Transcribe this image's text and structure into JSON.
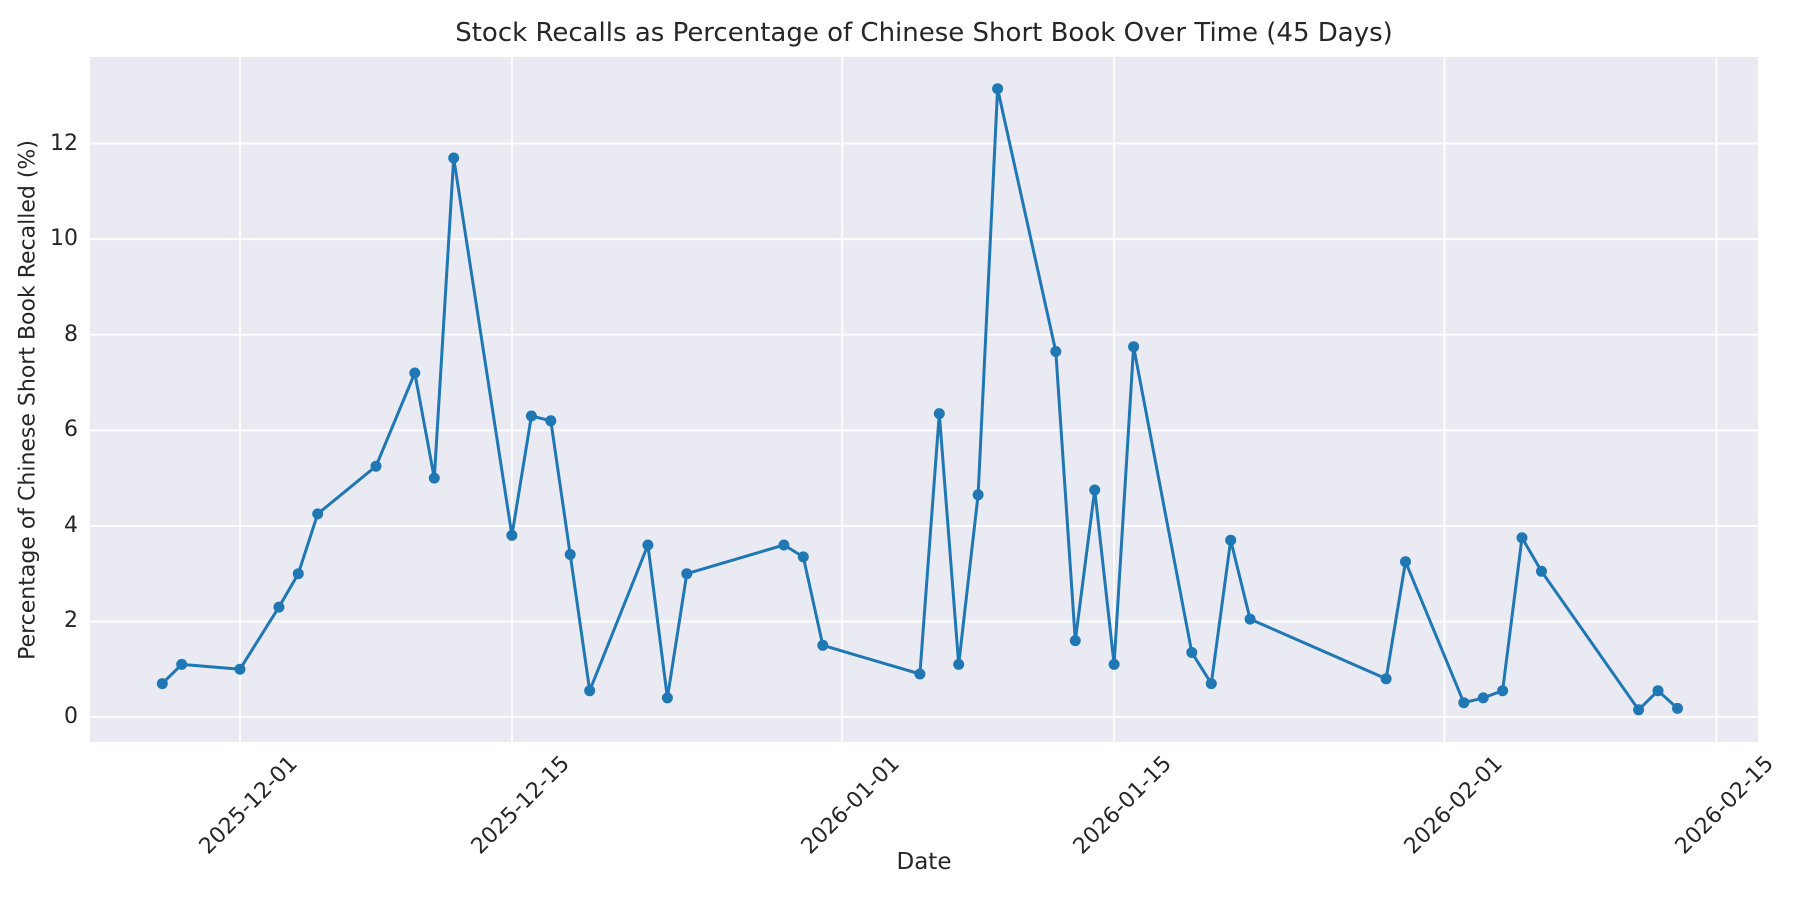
{
  "title": "Stock Recalls as Percentage of Chinese Short Book Over Time (45 Days)",
  "x_axis": {
    "label": "Date",
    "tick_labels": [
      "2025-12-01",
      "2025-12-15",
      "2026-01-01",
      "2026-01-15",
      "2026-02-01",
      "2026-02-15"
    ]
  },
  "y_axis": {
    "label": "Percentage of Chinese Short Book Recalled (%)",
    "tick_labels": [
      "0",
      "2",
      "4",
      "6",
      "8",
      "10",
      "12"
    ],
    "tick_values": [
      0,
      2,
      4,
      6,
      8,
      10,
      12
    ]
  },
  "colors": {
    "line": "#1f77b4",
    "marker": "#1f77b4",
    "plot_background": "#eaeaf2",
    "grid": "#ffffff",
    "text": "#262626",
    "figure_background": "#ffffff"
  },
  "chart_data": {
    "type": "line",
    "title": "Stock Recalls as Percentage of Chinese Short Book Over Time (45 Days)",
    "xlabel": "Date",
    "ylabel": "Percentage of Chinese Short Book Recalled (%)",
    "grid": true,
    "legend": false,
    "marker": "circle",
    "num_points": 45,
    "ylim": [
      -0.52,
      13.81
    ],
    "x": [
      "2025-11-27",
      "2025-11-28",
      "2025-12-01",
      "2025-12-03",
      "2025-12-04",
      "2025-12-05",
      "2025-12-08",
      "2025-12-10",
      "2025-12-11",
      "2025-12-12",
      "2025-12-15",
      "2025-12-16",
      "2025-12-17",
      "2025-12-18",
      "2025-12-19",
      "2025-12-22",
      "2025-12-23",
      "2025-12-24",
      "2025-12-29",
      "2025-12-30",
      "2025-12-31",
      "2026-01-05",
      "2026-01-06",
      "2026-01-07",
      "2026-01-08",
      "2026-01-09",
      "2026-01-12",
      "2026-01-13",
      "2026-01-14",
      "2026-01-15",
      "2026-01-16",
      "2026-01-19",
      "2026-01-20",
      "2026-01-21",
      "2026-01-22",
      "2026-01-29",
      "2026-01-30",
      "2026-02-02",
      "2026-02-03",
      "2026-02-04",
      "2026-02-05",
      "2026-02-06",
      "2026-02-11",
      "2026-02-12",
      "2026-02-13"
    ],
    "y": [
      0.7,
      1.1,
      1.0,
      2.3,
      3.0,
      4.25,
      5.25,
      7.2,
      5.0,
      11.7,
      3.8,
      6.3,
      6.2,
      3.4,
      0.55,
      3.6,
      0.4,
      3.0,
      3.6,
      3.35,
      1.5,
      0.9,
      6.35,
      1.1,
      4.65,
      13.15,
      7.65,
      1.6,
      4.75,
      1.1,
      7.75,
      1.35,
      0.7,
      3.7,
      2.05,
      0.8,
      3.25,
      0.3,
      0.4,
      0.55,
      3.75,
      3.05,
      0.15,
      0.55,
      0.18
    ]
  }
}
